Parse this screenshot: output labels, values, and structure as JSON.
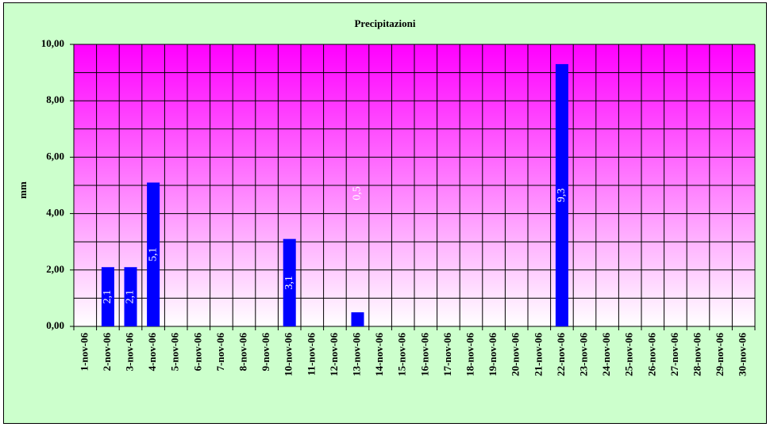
{
  "chart_data": {
    "type": "bar",
    "title": "Precipitazioni",
    "y_label": "mm",
    "categories": [
      "1-nov-06",
      "2-nov-06",
      "3-nov-06",
      "4-nov-06",
      "5-nov-06",
      "6-nov-06",
      "7-nov-06",
      "8-nov-06",
      "9-nov-06",
      "10-nov-06",
      "11-nov-06",
      "12-nov-06",
      "13-nov-06",
      "14-nov-06",
      "15-nov-06",
      "16-nov-06",
      "17-nov-06",
      "18-nov-06",
      "19-nov-06",
      "20-nov-06",
      "21-nov-06",
      "22-nov-06",
      "23-nov-06",
      "24-nov-06",
      "25-nov-06",
      "26-nov-06",
      "27-nov-06",
      "28-nov-06",
      "29-nov-06",
      "30-nov-06"
    ],
    "values": [
      0,
      2.1,
      2.1,
      5.1,
      0,
      0,
      0,
      0,
      0,
      3.1,
      0,
      0,
      0.5,
      0,
      0,
      0,
      0,
      0,
      0,
      0,
      0,
      9.3,
      0,
      0,
      0,
      0,
      0,
      0,
      0,
      0
    ],
    "value_labels": [
      null,
      "2,1",
      "2,1",
      "5,1",
      null,
      null,
      null,
      null,
      null,
      "3,1",
      null,
      null,
      "0,5",
      null,
      null,
      null,
      null,
      null,
      null,
      null,
      null,
      "9,3",
      null,
      null,
      null,
      null,
      null,
      null,
      null,
      null
    ],
    "color": "#0000ff",
    "ylim": [
      0,
      10
    ],
    "yticks": [
      {
        "value": 0,
        "label": "0,00"
      },
      {
        "value": 2,
        "label": "2,00"
      },
      {
        "value": 4,
        "label": "4,00"
      },
      {
        "value": 6,
        "label": "6,00"
      },
      {
        "value": 8,
        "label": "8,00"
      },
      {
        "value": 10,
        "label": "10,00"
      }
    ],
    "grid": true
  }
}
